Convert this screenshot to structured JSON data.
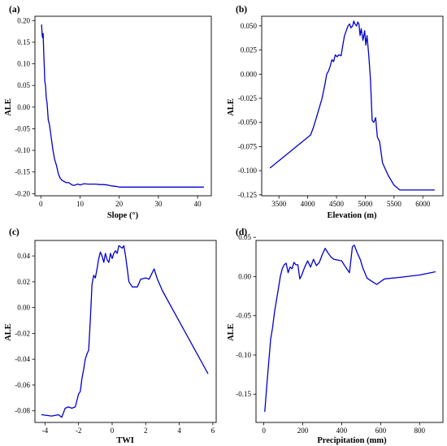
{
  "colors": {
    "line": "#0000cc",
    "axis": "#000000",
    "background": "#ffffff"
  },
  "chart_data": [
    {
      "type": "line",
      "panel_label": "(a)",
      "xlabel": "Slope (°)",
      "ylabel": "ALE",
      "xlim": [
        -1.5,
        43.5
      ],
      "ylim": [
        -0.205,
        0.21
      ],
      "xticks": [
        0,
        10,
        20,
        30,
        40
      ],
      "yticks": [
        -0.2,
        -0.15,
        -0.1,
        -0.05,
        0.0,
        0.05,
        0.1,
        0.15,
        0.2
      ],
      "ytick_labels": [
        "-0.20",
        "-0.15",
        "-0.10",
        "-0.05",
        "0.00",
        "0.05",
        "0.10",
        "0.15",
        "0.20"
      ],
      "grid": false,
      "series": [
        {
          "x": [
            0.2,
            0.35,
            0.5,
            0.6,
            0.75,
            0.9,
            1.0,
            1.2,
            1.4,
            1.6,
            1.9,
            2.2,
            2.5,
            2.8,
            3.1,
            3.5,
            4.0,
            4.5,
            5.0,
            5.5,
            6.0,
            6.5,
            7.0,
            7.5,
            8.0,
            8.5,
            9.0,
            9.5,
            10.0,
            11.0,
            12.0,
            13.0,
            14.0,
            15.0,
            16.0,
            17.0,
            18.0,
            19.0,
            20.0,
            25.0,
            30.0,
            35.0,
            41.5
          ],
          "y": [
            0.19,
            0.165,
            0.16,
            0.17,
            0.12,
            0.09,
            0.06,
            0.05,
            0.02,
            0.01,
            -0.03,
            -0.04,
            -0.06,
            -0.08,
            -0.1,
            -0.12,
            -0.135,
            -0.155,
            -0.165,
            -0.17,
            -0.172,
            -0.175,
            -0.174,
            -0.177,
            -0.18,
            -0.181,
            -0.179,
            -0.178,
            -0.18,
            -0.177,
            -0.178,
            -0.178,
            -0.178,
            -0.179,
            -0.179,
            -0.18,
            -0.182,
            -0.183,
            -0.185,
            -0.185,
            -0.185,
            -0.185,
            -0.185
          ]
        }
      ]
    },
    {
      "type": "line",
      "panel_label": "(b)",
      "xlabel": "Elevation (m)",
      "ylabel": "ALE",
      "xlim": [
        3200,
        6350
      ],
      "ylim": [
        -0.126,
        0.06
      ],
      "xticks": [
        3500,
        4000,
        4500,
        5000,
        5500,
        6000
      ],
      "yticks": [
        -0.125,
        -0.1,
        -0.075,
        -0.05,
        -0.025,
        0.0,
        0.025,
        0.05
      ],
      "ytick_labels": [
        "-0.125",
        "-0.100",
        "-0.075",
        "-0.050",
        "-0.025",
        "0.000",
        "0.025",
        "0.050"
      ],
      "grid": false,
      "series": [
        {
          "x": [
            3350,
            4050,
            4100,
            4150,
            4200,
            4250,
            4300,
            4330,
            4360,
            4390,
            4420,
            4450,
            4480,
            4510,
            4540,
            4580,
            4610,
            4640,
            4670,
            4700,
            4730,
            4750,
            4780,
            4800,
            4820,
            4850,
            4870,
            4890,
            4910,
            4930,
            4960,
            4990,
            5010,
            5030,
            5060,
            5090,
            5120,
            5150,
            5180,
            5210,
            5250,
            5300,
            5400,
            5500,
            5600,
            5800,
            6000,
            6200
          ],
          "y": [
            -0.097,
            -0.063,
            -0.055,
            -0.045,
            -0.035,
            -0.025,
            -0.01,
            0.0,
            0.003,
            0.008,
            0.015,
            0.013,
            0.02,
            0.018,
            0.02,
            0.019,
            0.03,
            0.04,
            0.045,
            0.05,
            0.052,
            0.048,
            0.05,
            0.055,
            0.052,
            0.05,
            0.054,
            0.052,
            0.04,
            0.047,
            0.035,
            0.045,
            0.03,
            0.04,
            0.02,
            -0.005,
            -0.048,
            -0.05,
            -0.045,
            -0.065,
            -0.07,
            -0.092,
            -0.105,
            -0.115,
            -0.12,
            -0.12,
            -0.12,
            -0.12
          ]
        }
      ]
    },
    {
      "type": "line",
      "panel_label": "(c)",
      "xlabel": "TWI",
      "ylabel": "ALE",
      "xlim": [
        -4.6,
        6.2
      ],
      "ylim": [
        -0.089,
        0.052
      ],
      "xticks": [
        -4,
        -2,
        0,
        2,
        4,
        6
      ],
      "yticks": [
        -0.08,
        -0.06,
        -0.04,
        -0.02,
        0.0,
        0.02,
        0.04
      ],
      "ytick_labels": [
        "-0.08",
        "-0.06",
        "-0.04",
        "-0.02",
        "0.00",
        "0.02",
        "0.04"
      ],
      "grid": false,
      "series": [
        {
          "x": [
            -4.2,
            -3.6,
            -3.2,
            -3.0,
            -2.8,
            -2.6,
            -2.4,
            -2.2,
            -2.0,
            -1.9,
            -1.8,
            -1.7,
            -1.6,
            -1.5,
            -1.4,
            -1.3,
            -1.2,
            -1.1,
            -1.0,
            -0.9,
            -0.8,
            -0.7,
            -0.6,
            -0.5,
            -0.4,
            -0.3,
            -0.2,
            -0.1,
            0.0,
            0.1,
            0.2,
            0.3,
            0.4,
            0.5,
            0.6,
            0.7,
            0.8,
            0.9,
            1.0,
            1.2,
            1.5,
            1.7,
            2.0,
            2.2,
            2.5,
            2.7,
            3.0,
            5.7
          ],
          "y": [
            -0.083,
            -0.084,
            -0.083,
            -0.085,
            -0.078,
            -0.077,
            -0.078,
            -0.077,
            -0.067,
            -0.065,
            -0.055,
            -0.048,
            -0.04,
            -0.036,
            -0.033,
            -0.01,
            0.018,
            0.025,
            0.023,
            0.03,
            0.038,
            0.043,
            0.04,
            0.035,
            0.042,
            0.037,
            0.035,
            0.042,
            0.038,
            0.042,
            0.044,
            0.042,
            0.048,
            0.047,
            0.046,
            0.048,
            0.04,
            0.03,
            0.02,
            0.016,
            0.016,
            0.022,
            0.023,
            0.022,
            0.03,
            0.022,
            0.013,
            -0.051
          ]
        }
      ]
    },
    {
      "type": "line",
      "panel_label": "(d)",
      "xlabel": "Precipitation (mm)",
      "ylabel": "ALE",
      "xlim": [
        -40,
        920
      ],
      "ylim": [
        -0.186,
        0.046
      ],
      "xticks": [
        0,
        200,
        400,
        600,
        800
      ],
      "yticks": [
        -0.15,
        -0.1,
        -0.05,
        0.0,
        0.05
      ],
      "ytick_labels": [
        "-0.15",
        "-0.10",
        "-0.05",
        "0.00",
        "0.05"
      ],
      "grid": false,
      "series": [
        {
          "x": [
            5,
            15,
            25,
            35,
            45,
            55,
            65,
            75,
            85,
            95,
            105,
            115,
            125,
            135,
            145,
            155,
            165,
            175,
            185,
            195,
            210,
            225,
            240,
            255,
            270,
            285,
            300,
            315,
            330,
            345,
            360,
            380,
            400,
            420,
            440,
            455,
            465,
            480,
            495,
            510,
            530,
            560,
            580,
            620,
            700,
            800,
            880
          ],
          "y": [
            -0.172,
            -0.14,
            -0.11,
            -0.08,
            -0.065,
            -0.045,
            -0.03,
            -0.015,
            0.0,
            0.01,
            0.015,
            0.017,
            0.005,
            0.012,
            0.01,
            0.018,
            0.015,
            0.015,
            -0.003,
            0.002,
            0.012,
            0.02,
            0.012,
            0.022,
            0.014,
            0.018,
            0.028,
            0.036,
            0.03,
            0.025,
            0.022,
            0.021,
            0.02,
            0.012,
            0.005,
            0.038,
            0.04,
            0.03,
            0.022,
            0.01,
            -0.002,
            -0.007,
            -0.01,
            -0.003,
            -0.001,
            0.002,
            0.006
          ]
        }
      ]
    }
  ]
}
